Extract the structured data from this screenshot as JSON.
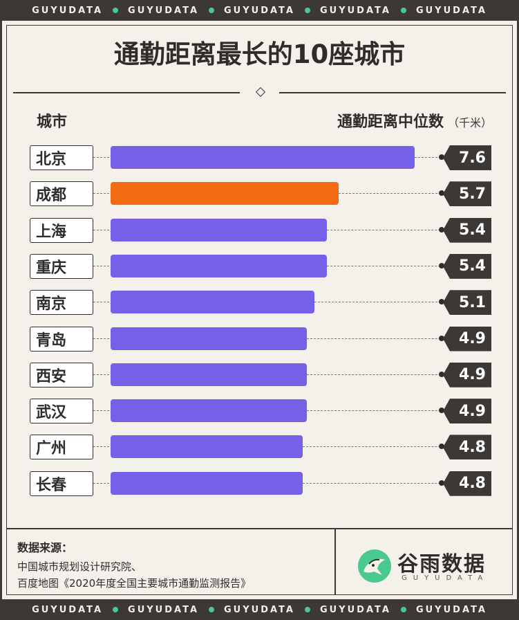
{
  "brand": {
    "strip_text": "GUYUDATA",
    "strip_repeat": 5,
    "logo_name": "谷雨数据",
    "logo_sub": "GUYUDATA"
  },
  "colors": {
    "bar": "#7561e8",
    "highlight_bar": "#f26a12",
    "dark": "#3b3836",
    "background": "#f3f1ea",
    "accent_dot": "#49c98d"
  },
  "chart_data": {
    "type": "bar",
    "orientation": "horizontal",
    "title": "通勤距离最长的10座城市",
    "category_header": "城市",
    "value_header": "通勤距离中位数",
    "value_unit": "（千米）",
    "categories": [
      "北京",
      "成都",
      "上海",
      "重庆",
      "南京",
      "青岛",
      "西安",
      "武汉",
      "广州",
      "长春"
    ],
    "values": [
      7.6,
      5.7,
      5.4,
      5.4,
      5.1,
      4.9,
      4.9,
      4.9,
      4.8,
      4.8
    ],
    "highlight": [
      "成都"
    ],
    "xlim": [
      0,
      7.6
    ],
    "grid": false,
    "legend": "none"
  },
  "source": {
    "heading": "数据来源：",
    "lines": [
      "中国城市规划设计研究院、",
      "百度地图《2020年度全国主要城市通勤监测报告》"
    ]
  }
}
